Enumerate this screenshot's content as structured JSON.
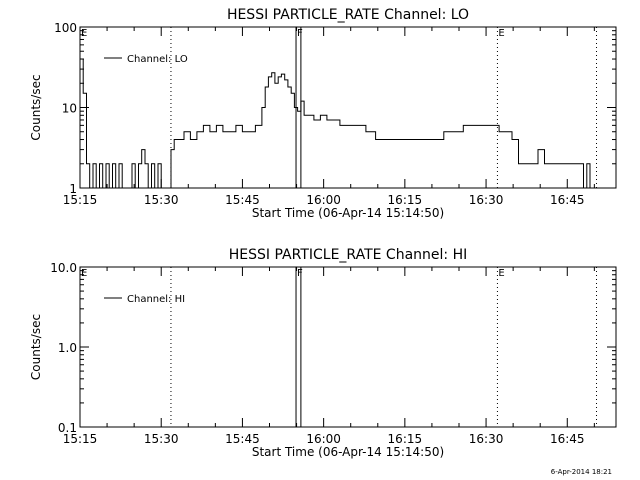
{
  "chart_data": [
    {
      "type": "line",
      "title": "HESSI PARTICLE_RATE Channel: LO",
      "xlabel": "Start Time (06-Apr-14 15:14:50)",
      "ylabel": "Counts/sec",
      "yscale": "log",
      "ylim": [
        1,
        100
      ],
      "xlim_minutes": [
        15.25,
        16.9
      ],
      "x_ticks": [
        "15:15",
        "15:30",
        "15:45",
        "16:00",
        "16:15",
        "16:30",
        "16:45"
      ],
      "y_ticks": [
        "1",
        "10",
        "100"
      ],
      "legend": "Channel: LO",
      "markers": [
        {
          "label": "E",
          "minute": 15.25,
          "style": "dotted"
        },
        {
          "label": "",
          "minute": 15.53,
          "style": "dotted"
        },
        {
          "label": "F",
          "minute": 15.915,
          "style": "solid"
        },
        {
          "label": "",
          "minute": 15.93,
          "style": "solid"
        },
        {
          "label": "E",
          "minute": 16.535,
          "style": "dotted"
        },
        {
          "label": "",
          "minute": 16.84,
          "style": "dotted"
        }
      ],
      "series": [
        {
          "name": "Channel: LO",
          "x_min": [
            15.25,
            15.26,
            15.27,
            15.28,
            15.29,
            15.3,
            15.31,
            15.32,
            15.33,
            15.34,
            15.35,
            15.36,
            15.37,
            15.38,
            15.39,
            15.4,
            15.41,
            15.42,
            15.43,
            15.44,
            15.45,
            15.46,
            15.47,
            15.48,
            15.49,
            15.5,
            15.51,
            15.52,
            15.53,
            15.54,
            15.55,
            15.57,
            15.59,
            15.61,
            15.63,
            15.65,
            15.67,
            15.69,
            15.71,
            15.73,
            15.75,
            15.77,
            15.79,
            15.8,
            15.81,
            15.82,
            15.83,
            15.84,
            15.85,
            15.86,
            15.87,
            15.88,
            15.89,
            15.9,
            15.91,
            15.92,
            15.93,
            15.94,
            15.95,
            15.97,
            15.99,
            16.01,
            16.03,
            16.05,
            16.07,
            16.1,
            16.13,
            16.16,
            16.19,
            16.22,
            16.25,
            16.28,
            16.31,
            16.34,
            16.37,
            16.4,
            16.43,
            16.46,
            16.49,
            16.52,
            16.54,
            16.56,
            16.58,
            16.6,
            16.62,
            16.64,
            16.66,
            16.68,
            16.7,
            16.72,
            16.74,
            16.76,
            16.78,
            16.8,
            16.81,
            16.82,
            16.83,
            16.84
          ],
          "values": [
            40,
            15,
            2,
            1,
            2,
            1,
            2,
            1,
            2,
            1,
            2,
            1,
            2,
            1,
            1,
            1,
            2,
            1,
            2,
            3,
            2,
            1,
            2,
            1,
            2,
            1,
            1,
            1,
            3,
            4,
            4,
            5,
            4,
            5,
            6,
            5,
            6,
            5,
            5,
            6,
            5,
            5,
            6,
            6,
            10,
            18,
            24,
            27,
            20,
            24,
            26,
            22,
            18,
            15,
            10,
            9,
            12,
            8,
            8,
            7,
            8,
            7,
            7,
            6,
            6,
            6,
            5,
            4,
            4,
            4,
            4,
            4,
            4,
            4,
            5,
            5,
            6,
            6,
            6,
            6,
            5,
            5,
            4,
            2,
            2,
            2,
            3,
            2,
            2,
            2,
            2,
            2,
            2,
            1,
            2,
            1,
            1,
            1
          ]
        }
      ]
    },
    {
      "type": "line",
      "title": "HESSI PARTICLE_RATE Channel: HI",
      "xlabel": "Start Time (06-Apr-14 15:14:50)",
      "ylabel": "Counts/sec",
      "yscale": "log",
      "ylim": [
        0.1,
        10.0
      ],
      "xlim_minutes": [
        15.25,
        16.9
      ],
      "x_ticks": [
        "15:15",
        "15:30",
        "15:45",
        "16:00",
        "16:15",
        "16:30",
        "16:45"
      ],
      "y_ticks": [
        "0.1",
        "1.0",
        "10.0"
      ],
      "legend": "Channel: HI",
      "markers": [
        {
          "label": "E",
          "minute": 15.25,
          "style": "dotted"
        },
        {
          "label": "",
          "minute": 15.53,
          "style": "dotted"
        },
        {
          "label": "F",
          "minute": 15.915,
          "style": "solid"
        },
        {
          "label": "",
          "minute": 15.93,
          "style": "solid"
        },
        {
          "label": "E",
          "minute": 16.535,
          "style": "dotted"
        },
        {
          "label": "",
          "minute": 16.84,
          "style": "dotted"
        }
      ],
      "series": [
        {
          "name": "Channel: HI",
          "x_min": [],
          "values": []
        }
      ]
    }
  ],
  "footer": {
    "timestamp": "6-Apr-2014 18:21"
  }
}
